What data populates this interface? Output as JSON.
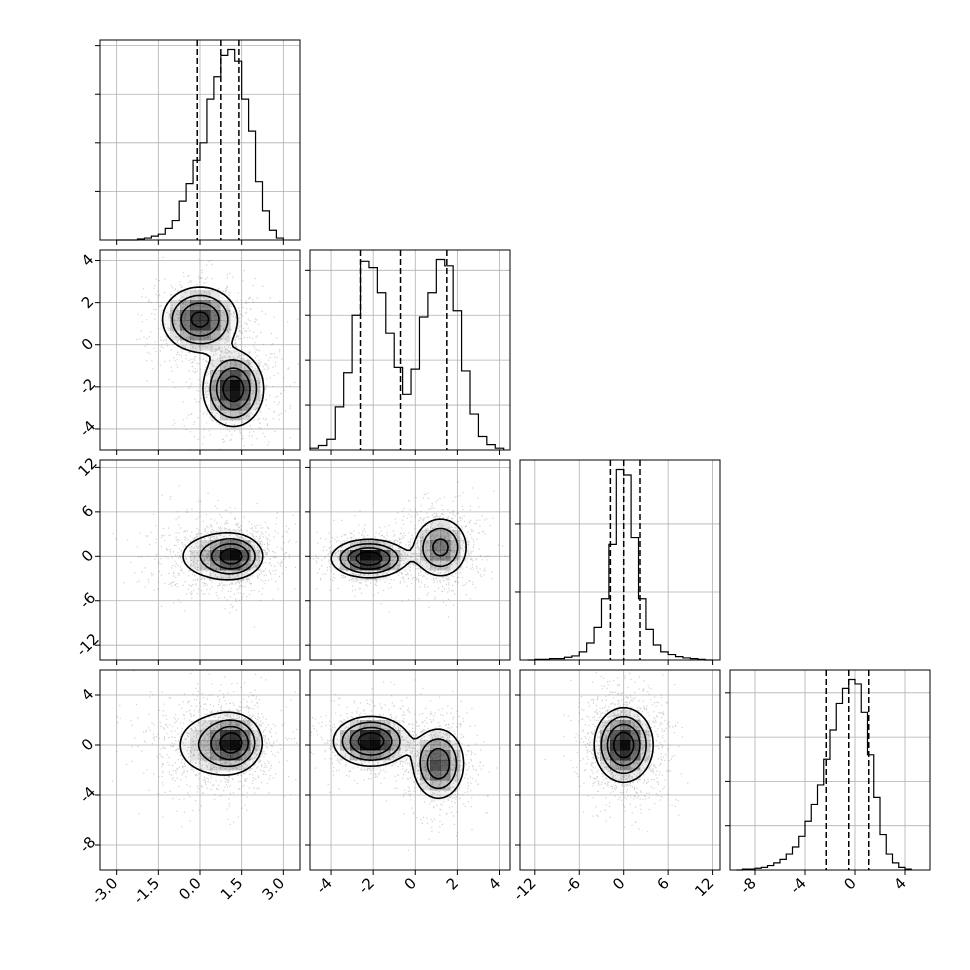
{
  "figure": {
    "type": "corner",
    "n_params": 4,
    "line_color": "#000000",
    "grid_color": "#b0b0b0",
    "density_color": "#000000"
  },
  "chart_data": [
    {
      "type": "histogram",
      "param": 0,
      "xlim": [
        -3.6,
        3.6
      ],
      "xticks": [
        "-3.0",
        "-1.5",
        "0.0",
        "1.5",
        "3.0"
      ],
      "xtick_values": [
        -3.0,
        -1.5,
        0.0,
        1.5,
        3.0
      ],
      "quantiles": [
        -0.1,
        0.75,
        1.4
      ],
      "bin_edges": [
        -3.0,
        -2.75,
        -2.5,
        -2.25,
        -2.0,
        -1.75,
        -1.5,
        -1.25,
        -1.0,
        -0.75,
        -0.5,
        -0.25,
        0.0,
        0.25,
        0.5,
        0.75,
        1.0,
        1.25,
        1.5,
        1.75,
        2.0,
        2.25,
        2.5,
        2.75,
        3.0
      ],
      "counts": [
        0,
        0,
        0,
        1,
        2,
        4,
        6,
        12,
        20,
        40,
        58,
        82,
        100,
        145,
        168,
        190,
        196,
        184,
        145,
        112,
        60,
        30,
        10,
        2
      ]
    },
    {
      "type": "histogram",
      "param": 1,
      "xlim": [
        -5,
        4.5
      ],
      "xticks": [
        "-4",
        "-2",
        "0",
        "2",
        "4"
      ],
      "xtick_values": [
        -4,
        -2,
        0,
        2,
        4
      ],
      "quantiles": [
        -2.6,
        -0.7,
        1.5
      ],
      "bin_edges": [
        -5.0,
        -4.6,
        -4.2,
        -3.8,
        -3.4,
        -3.0,
        -2.6,
        -2.2,
        -1.8,
        -1.4,
        -1.0,
        -0.6,
        -0.2,
        0.2,
        0.6,
        1.0,
        1.4,
        1.8,
        2.2,
        2.6,
        3.0,
        3.4,
        3.8,
        4.2
      ],
      "counts": [
        2,
        5,
        12,
        48,
        86,
        150,
        210,
        203,
        175,
        130,
        92,
        62,
        90,
        148,
        175,
        212,
        205,
        155,
        88,
        40,
        15,
        6,
        2
      ]
    },
    {
      "type": "histogram",
      "param": 2,
      "xlim": [
        -14,
        13
      ],
      "xticks": [
        "-12",
        "-6",
        "0",
        "6",
        "12"
      ],
      "xtick_values": [
        -12,
        -6,
        0,
        6,
        12
      ],
      "quantiles": [
        -1.8,
        0.0,
        2.2
      ],
      "bin_edges": [
        -13.0,
        -12.0,
        -11.0,
        -10.0,
        -9.0,
        -8.0,
        -7.0,
        -6.0,
        -5.0,
        -4.0,
        -3.0,
        -2.0,
        -1.0,
        0.0,
        1.0,
        2.0,
        3.0,
        4.0,
        5.0,
        6.0,
        7.0,
        8.0,
        9.0,
        10.0,
        11.0,
        12.0
      ],
      "counts": [
        0,
        1,
        1,
        2,
        2,
        4,
        6,
        12,
        25,
        48,
        90,
        170,
        280,
        272,
        180,
        90,
        45,
        22,
        12,
        8,
        5,
        3,
        2,
        1,
        0
      ]
    },
    {
      "type": "histogram",
      "param": 3,
      "xlim": [
        -10,
        6
      ],
      "xticks": [
        "-8",
        "-4",
        "0",
        "4"
      ],
      "xtick_values": [
        -8,
        -4,
        0,
        4
      ],
      "quantiles": [
        -2.3,
        -0.5,
        1.1
      ],
      "bin_edges": [
        -9.5,
        -9.0,
        -8.5,
        -8.0,
        -7.5,
        -7.0,
        -6.5,
        -6.0,
        -5.5,
        -5.0,
        -4.5,
        -4.0,
        -3.5,
        -3.0,
        -2.5,
        -2.0,
        -1.5,
        -1.0,
        -0.5,
        0.0,
        0.5,
        1.0,
        1.5,
        2.0,
        2.5,
        3.0,
        3.5,
        4.0,
        4.5
      ],
      "counts": [
        0,
        1,
        1,
        2,
        3,
        5,
        8,
        12,
        18,
        26,
        38,
        55,
        74,
        96,
        125,
        158,
        188,
        205,
        215,
        210,
        178,
        130,
        82,
        40,
        18,
        8,
        3,
        1
      ]
    },
    {
      "type": "density2d",
      "x_param": 0,
      "y_param": 1,
      "xlim": [
        -3.6,
        3.6
      ],
      "ylim": [
        -5,
        4.5
      ],
      "yticks": [
        "-4",
        "-2",
        "0",
        "2",
        "4"
      ],
      "ytick_values": [
        -4,
        -2,
        0,
        2,
        4
      ],
      "components": [
        {
          "mx": 0.0,
          "my": 1.2,
          "sx": 0.7,
          "sy": 0.8,
          "w": 0.5
        },
        {
          "mx": 1.2,
          "my": -2.1,
          "sx": 0.55,
          "sy": 0.9,
          "w": 0.5
        }
      ]
    },
    {
      "type": "density2d",
      "x_param": 0,
      "y_param": 2,
      "xlim": [
        -3.6,
        3.6
      ],
      "ylim": [
        -14,
        13
      ],
      "yticks": [
        "-12",
        "-6",
        "0",
        "6",
        "12"
      ],
      "ytick_values": [
        -12,
        -6,
        0,
        6,
        12
      ],
      "components": [
        {
          "mx": 0.6,
          "my": 0.0,
          "sx": 0.9,
          "sy": 2.0,
          "w": 0.55
        },
        {
          "mx": 1.2,
          "my": 0.0,
          "sx": 0.5,
          "sy": 1.4,
          "w": 0.45
        }
      ]
    },
    {
      "type": "density2d",
      "x_param": 1,
      "y_param": 2,
      "xlim": [
        -5,
        4.5
      ],
      "ylim": [
        -14,
        13
      ],
      "components": [
        {
          "mx": -2.2,
          "my": -0.3,
          "sx": 0.9,
          "sy": 1.3,
          "w": 0.55
        },
        {
          "mx": 1.2,
          "my": 1.2,
          "sx": 0.7,
          "sy": 2.2,
          "w": 0.45
        }
      ]
    },
    {
      "type": "density2d",
      "x_param": 0,
      "y_param": 3,
      "xlim": [
        -3.6,
        3.6
      ],
      "ylim": [
        -10,
        6
      ],
      "yticks": [
        "-8",
        "-4",
        "0",
        "4"
      ],
      "ytick_values": [
        -8,
        -4,
        0,
        4
      ],
      "components": [
        {
          "mx": 0.5,
          "my": 0.0,
          "sx": 0.9,
          "sy": 1.6,
          "w": 0.55
        },
        {
          "mx": 1.2,
          "my": 0.2,
          "sx": 0.5,
          "sy": 1.1,
          "w": 0.45
        }
      ]
    },
    {
      "type": "density2d",
      "x_param": 1,
      "y_param": 3,
      "xlim": [
        -5,
        4.5
      ],
      "ylim": [
        -10,
        6
      ],
      "components": [
        {
          "mx": -2.1,
          "my": 0.3,
          "sx": 0.9,
          "sy": 1.0,
          "w": 0.55
        },
        {
          "mx": 1.1,
          "my": -1.5,
          "sx": 0.65,
          "sy": 1.5,
          "w": 0.45
        }
      ]
    },
    {
      "type": "density2d",
      "x_param": 2,
      "y_param": 3,
      "xlim": [
        -14,
        13
      ],
      "ylim": [
        -10,
        6
      ],
      "components": [
        {
          "mx": 0.0,
          "my": 0.0,
          "sx": 2.0,
          "sy": 1.5,
          "w": 1.0
        }
      ]
    }
  ]
}
